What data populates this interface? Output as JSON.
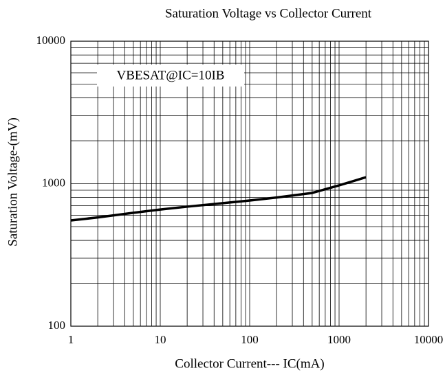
{
  "chart_data": {
    "type": "line",
    "title": "Saturation Voltage vs Collector Current",
    "x_label": "Collector Current--- IC(mA)",
    "y_label": "Saturation Voltage-(mV)",
    "annotation": "VBESAT@IC=10IB",
    "x": [
      1,
      2,
      5,
      10,
      20,
      50,
      100,
      200,
      500,
      1000,
      2000
    ],
    "series": [
      {
        "name": "VBESAT@IC=10IB",
        "color": "#000000",
        "values": [
          552,
          580,
          625,
          659,
          690,
          730,
          762,
          800,
          861,
          973,
          1110
        ]
      }
    ],
    "xlim": [
      1,
      10000
    ],
    "ylim": [
      100,
      10000
    ],
    "xticks": [
      1,
      10,
      100,
      1000,
      10000
    ],
    "yticks": [
      100,
      1000,
      10000
    ],
    "xscale": "log",
    "yscale": "log",
    "grid": true,
    "minor_grid": true
  }
}
